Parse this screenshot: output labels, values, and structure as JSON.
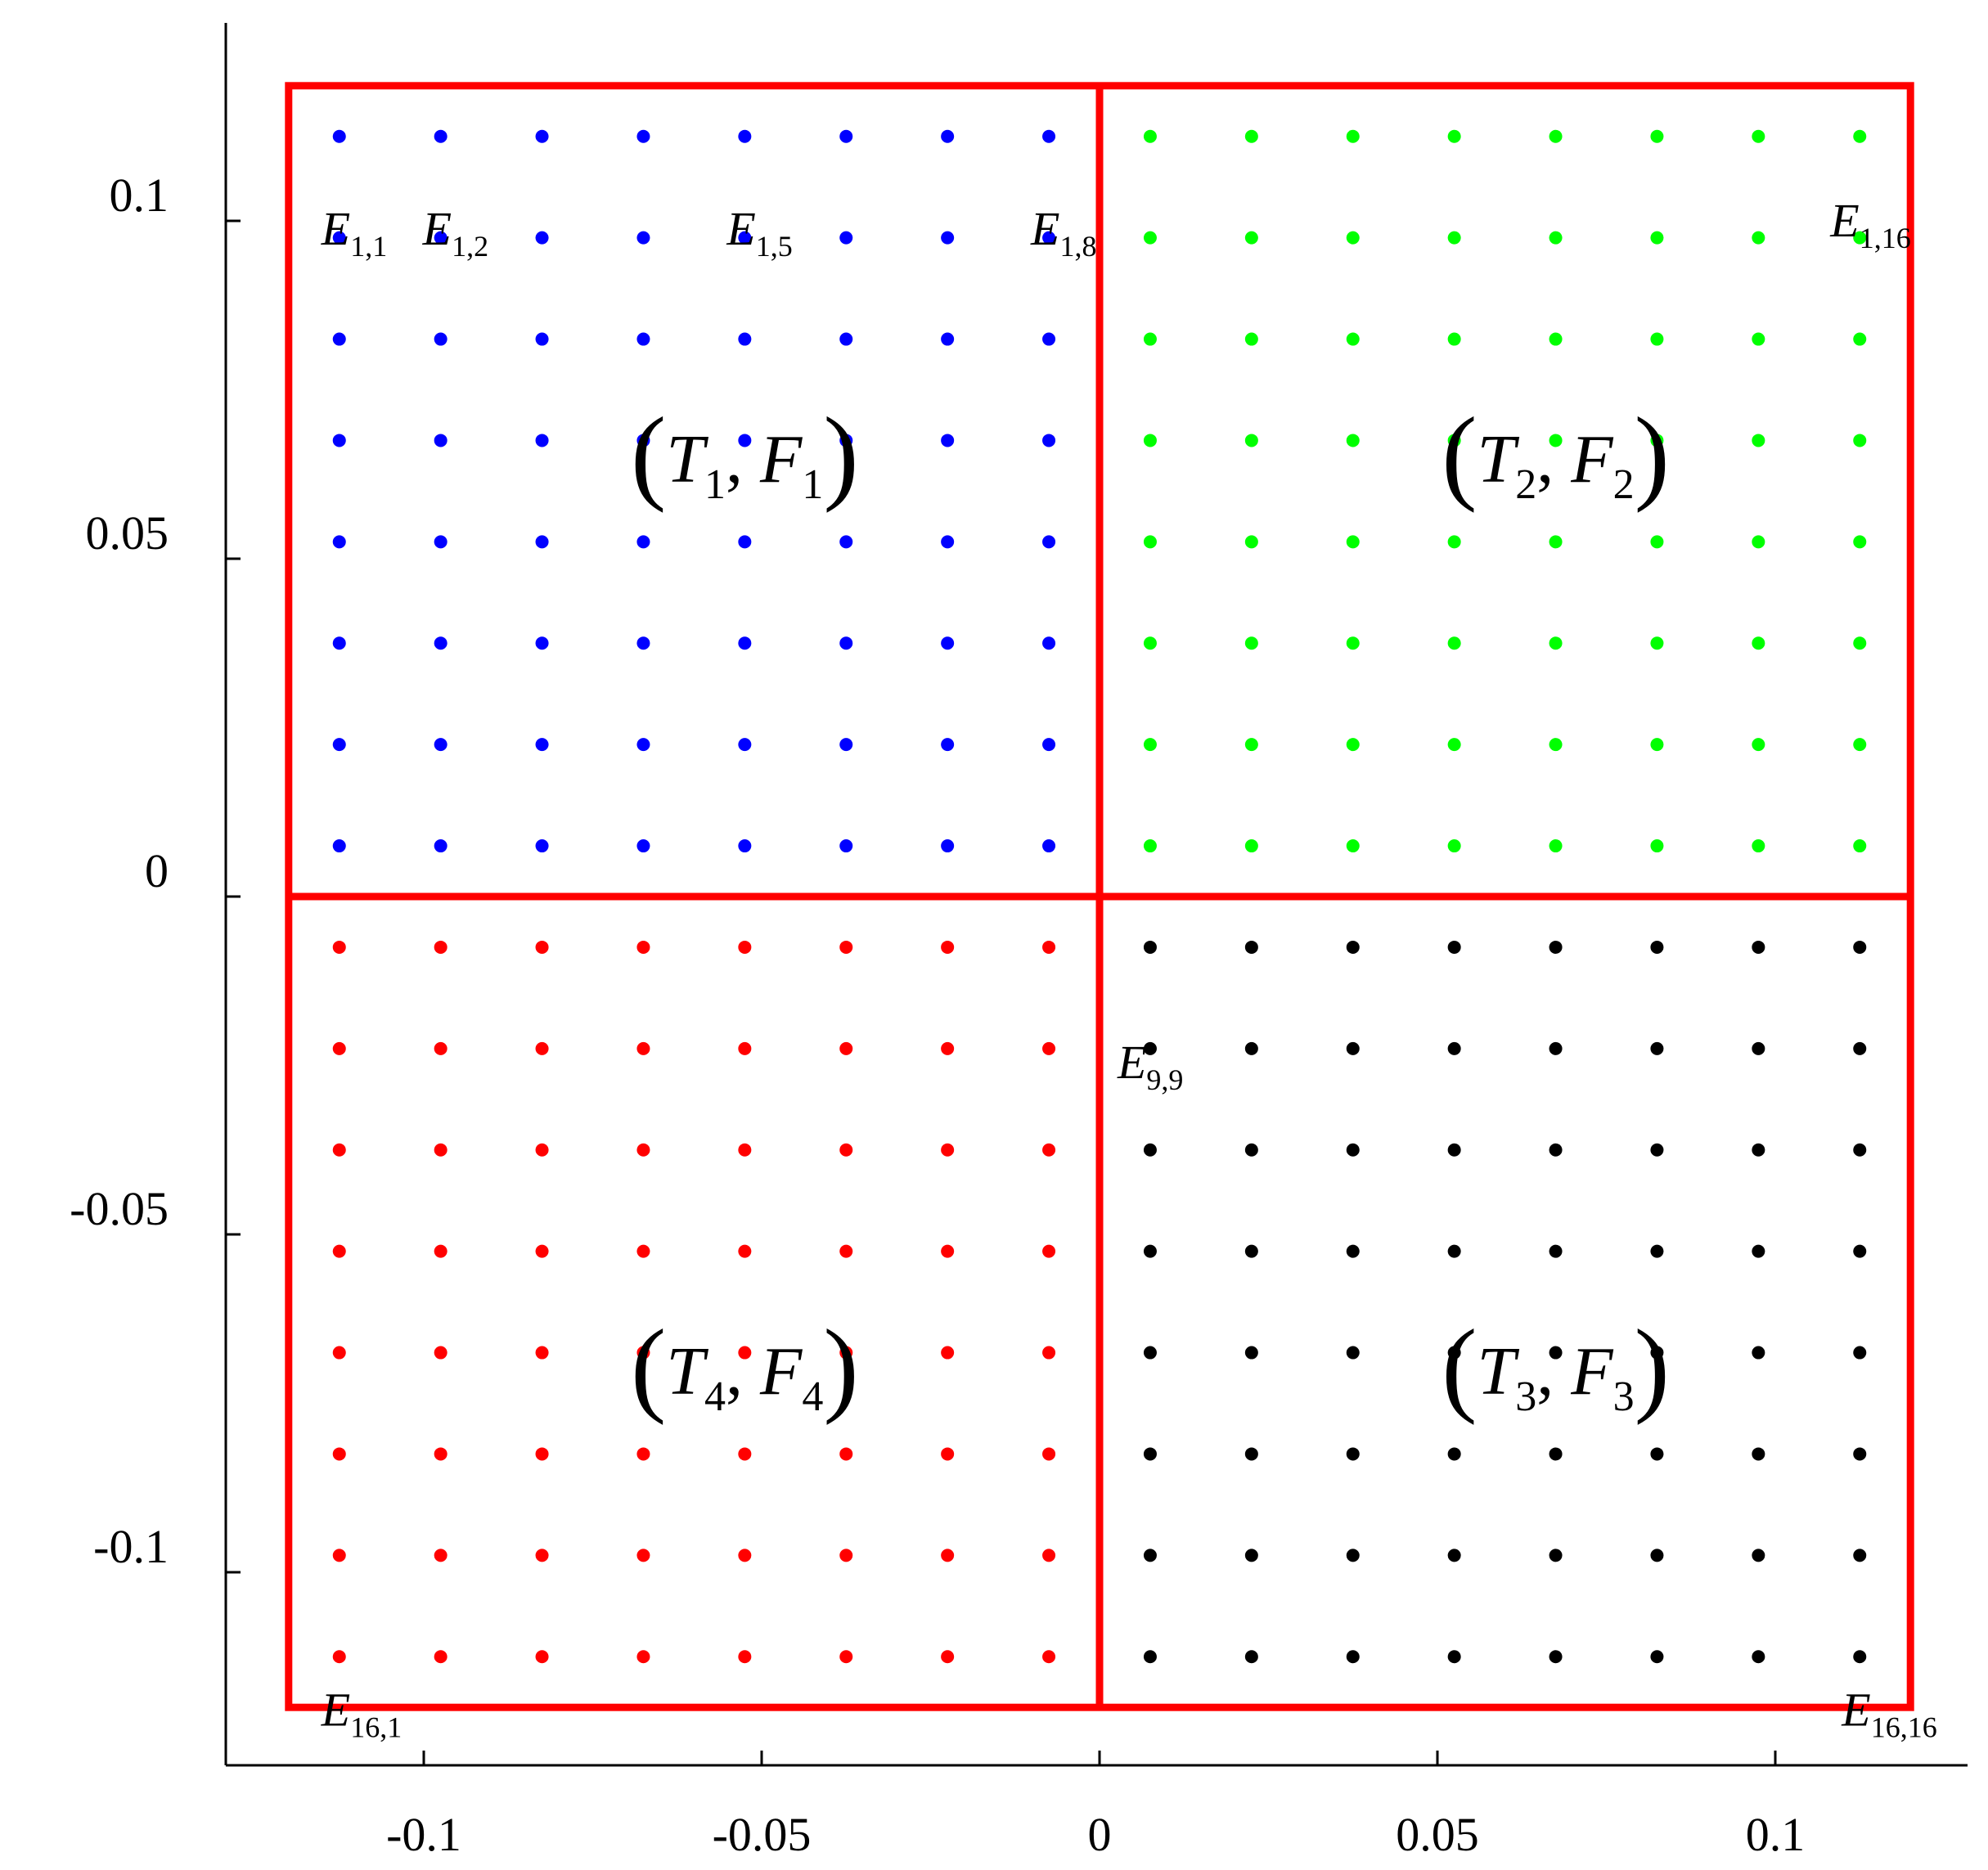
{
  "chart_data": {
    "type": "scatter",
    "title": "",
    "xlabel": "",
    "ylabel": "",
    "xlim": [
      -0.128,
      0.128
    ],
    "ylim": [
      -0.128,
      0.128
    ],
    "x_ticks": [
      -0.1,
      -0.05,
      0,
      0.05,
      0.1
    ],
    "x_tick_labels": [
      "-0.1",
      "-0.05",
      "0",
      "0.05",
      "0.1"
    ],
    "y_ticks": [
      0.1,
      0.05,
      0,
      -0.05,
      -0.1
    ],
    "y_tick_labels": [
      "0.1",
      "0.05",
      "0",
      "-0.05",
      "-0.1"
    ],
    "grid": false,
    "legend": "none",
    "grid_points_x": [
      -0.1125,
      -0.0975,
      -0.0825,
      -0.0675,
      -0.0525,
      -0.0375,
      -0.0225,
      -0.0075,
      0.0075,
      0.0225,
      0.0375,
      0.0525,
      0.0675,
      0.0825,
      0.0975,
      0.1125
    ],
    "grid_points_y": [
      0.1125,
      0.0975,
      0.0825,
      0.0675,
      0.0525,
      0.0375,
      0.0225,
      0.0075,
      -0.0075,
      -0.0225,
      -0.0375,
      -0.0525,
      -0.0675,
      -0.0825,
      -0.0975,
      -0.1125
    ],
    "series": [
      {
        "color": "#0000ff",
        "x_range": [
          -0.1125,
          -0.0075
        ],
        "y_range": [
          0.0075,
          0.1125
        ]
      },
      {
        "color": "#00ff00",
        "x_range": [
          0.0075,
          0.1125
        ],
        "y_range": [
          0.0075,
          0.1125
        ]
      },
      {
        "color": "#000000",
        "x_range": [
          0.0075,
          0.1125
        ],
        "y_range": [
          -0.1125,
          -0.0075
        ]
      },
      {
        "color": "#ff0000",
        "x_range": [
          -0.1125,
          -0.0075
        ],
        "y_range": [
          -0.1125,
          -0.0075
        ]
      }
    ],
    "boundary": {
      "color": "#ff0000",
      "x_range": [
        -0.12,
        0.12
      ],
      "y_range": [
        -0.12,
        0.12
      ],
      "dividers": {
        "x": 0,
        "y": 0
      }
    },
    "quadrant_labels": [
      {
        "pre": "(",
        "t": "T",
        "t_sub": "1",
        "sep": ", ",
        "f": "F",
        "f_sub": "1",
        "post": ")",
        "x": -0.0525,
        "y": 0.065
      },
      {
        "pre": "(",
        "t": "T",
        "t_sub": "2",
        "sep": ", ",
        "f": "F",
        "f_sub": "2",
        "post": ")",
        "x": 0.0675,
        "y": 0.065
      },
      {
        "pre": "(",
        "t": "T",
        "t_sub": "3",
        "sep": ", ",
        "f": "F",
        "f_sub": "3",
        "post": ")",
        "x": 0.0675,
        "y": -0.07
      },
      {
        "pre": "(",
        "t": "T",
        "t_sub": "4",
        "sep": ", ",
        "f": "F",
        "f_sub": "4",
        "post": ")",
        "x": -0.0525,
        "y": -0.07
      }
    ],
    "element_labels": [
      {
        "main": "E",
        "sub": "1,1",
        "x": -0.1125,
        "y": 0.1125
      },
      {
        "main": "E",
        "sub": "1,2",
        "x": -0.0975,
        "y": 0.1125
      },
      {
        "main": "E",
        "sub": "1,5",
        "x": -0.0525,
        "y": 0.1125
      },
      {
        "main": "E",
        "sub": "1,8",
        "x": -0.0075,
        "y": 0.1125
      },
      {
        "main": "E",
        "sub": "1,16",
        "x": 0.1125,
        "y": 0.1125
      },
      {
        "main": "E",
        "sub": "9,9",
        "x": 0.0075,
        "y": -0.0075
      },
      {
        "main": "E",
        "sub": "16,1",
        "x": -0.1125,
        "y": -0.1125
      },
      {
        "main": "E",
        "sub": "16,16",
        "x": 0.1125,
        "y": -0.1125
      }
    ]
  }
}
